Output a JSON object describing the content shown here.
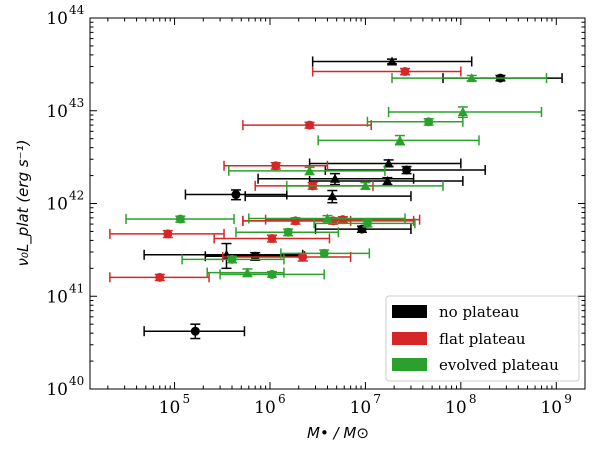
{
  "chart_data": {
    "type": "scatter",
    "title": "",
    "xlabel": "M• / M⊙",
    "ylabel": "ν₀L_plat (erg s⁻¹)",
    "xscale": "log",
    "yscale": "log",
    "xlim": [
      13000.0,
      2000000000.0
    ],
    "ylim": [
      1e+40,
      1e+44
    ],
    "x_tick_labels": [
      {
        "base": "10",
        "exp": "5",
        "value": 100000.0
      },
      {
        "base": "10",
        "exp": "6",
        "value": 1000000.0
      },
      {
        "base": "10",
        "exp": "7",
        "value": 10000000.0
      },
      {
        "base": "10",
        "exp": "8",
        "value": 100000000.0
      },
      {
        "base": "10",
        "exp": "9",
        "value": 1000000000.0
      }
    ],
    "y_tick_labels": [
      {
        "base": "10",
        "exp": "40",
        "value": 1e+40
      },
      {
        "base": "10",
        "exp": "41",
        "value": 1e+41
      },
      {
        "base": "10",
        "exp": "42",
        "value": 1e+42
      },
      {
        "base": "10",
        "exp": "43",
        "value": 1e+43
      },
      {
        "base": "10",
        "exp": "44",
        "value": 1e+44
      }
    ],
    "legend_position": "bottom-right",
    "series": [
      {
        "name": "no plateau",
        "color": "#000000",
        "points": [
          {
            "x": 19000000.0,
            "y": 3.4e+43,
            "xlo": 2800000.0,
            "xhi": 130000000.0,
            "ylo": 3.2e+43,
            "yhi": 3.6e+43,
            "marker": "triangle"
          },
          {
            "x": 260000000.0,
            "y": 2.25e+43,
            "xlo": 65000000.0,
            "xhi": 1150000000.0,
            "ylo": 2.1e+43,
            "yhi": 2.4e+43,
            "marker": "circle"
          },
          {
            "x": 17500000.0,
            "y": 2.7e+42,
            "xlo": 2600000.0,
            "xhi": 100000000.0,
            "ylo": 2.5e+42,
            "yhi": 2.95e+42,
            "marker": "triangle"
          },
          {
            "x": 27000000.0,
            "y": 2.3e+42,
            "xlo": 3800000.0,
            "xhi": 180000000.0,
            "ylo": 2.1e+42,
            "yhi": 2.5e+42,
            "marker": "circle"
          },
          {
            "x": 4800000.0,
            "y": 1.85e+42,
            "xlo": 750000.0,
            "xhi": 32000000.0,
            "ylo": 1.6e+42,
            "yhi": 2.1e+42,
            "marker": "triangle"
          },
          {
            "x": 17000000.0,
            "y": 1.75e+42,
            "xlo": 2600000.0,
            "xhi": 105000000.0,
            "ylo": 1.6e+42,
            "yhi": 1.9e+42,
            "marker": "triangle"
          },
          {
            "x": 440000.0,
            "y": 1.25e+42,
            "xlo": 130000.0,
            "xhi": 1500000.0,
            "ylo": 1.1e+42,
            "yhi": 1.4e+42,
            "marker": "circle"
          },
          {
            "x": 4500000.0,
            "y": 1.2e+42,
            "xlo": 550000.0,
            "xhi": 30000000.0,
            "ylo": 1.02e+42,
            "yhi": 1.38e+42,
            "marker": "triangle"
          },
          {
            "x": 9200000.0,
            "y": 5.3e+41,
            "xlo": 3000000.0,
            "xhi": 30000000.0,
            "ylo": 4.9e+41,
            "yhi": 5.7e+41,
            "marker": "circle"
          },
          {
            "x": 350000.0,
            "y": 2.8e+41,
            "xlo": 48000.0,
            "xhi": 2200000.0,
            "ylo": 2e+41,
            "yhi": 3.7e+41,
            "marker": "triangle"
          },
          {
            "x": 700000.0,
            "y": 2.7e+41,
            "xlo": 210000.0,
            "xhi": 2300000.0,
            "ylo": 2.45e+41,
            "yhi": 2.95e+41,
            "marker": "circle"
          },
          {
            "x": 165000.0,
            "y": 4.2e+40,
            "xlo": 48000.0,
            "xhi": 540000.0,
            "ylo": 3.5e+40,
            "yhi": 5e+40,
            "marker": "circle"
          }
        ]
      },
      {
        "name": "flat plateau",
        "color": "#d62728",
        "points": [
          {
            "x": 26000000.0,
            "y": 2.65e+43,
            "xlo": 2800000.0,
            "xhi": 100000000.0,
            "ylo": 2.45e+43,
            "yhi": 2.85e+43,
            "marker": "circle"
          },
          {
            "x": 2600000.0,
            "y": 7e+42,
            "xlo": 520000.0,
            "xhi": 11500000.0,
            "ylo": 6.5e+42,
            "yhi": 7.5e+42,
            "marker": "circle"
          },
          {
            "x": 1150000.0,
            "y": 2.55e+42,
            "xlo": 330000.0,
            "xhi": 4000000.0,
            "ylo": 2.35e+42,
            "yhi": 2.75e+42,
            "marker": "circle"
          },
          {
            "x": 2800000.0,
            "y": 1.55e+42,
            "xlo": 700000.0,
            "xhi": 12000000.0,
            "ylo": 1.43e+42,
            "yhi": 1.68e+42,
            "marker": "circle"
          },
          {
            "x": 1850000.0,
            "y": 6.5e+41,
            "xlo": 520000.0,
            "xhi": 7000000.0,
            "ylo": 6e+41,
            "yhi": 7e+41,
            "marker": "circle"
          },
          {
            "x": 5800000.0,
            "y": 6.7e+41,
            "xlo": 900000.0,
            "xhi": 37000000.0,
            "ylo": 6.2e+41,
            "yhi": 7.2e+41,
            "marker": "circle"
          },
          {
            "x": 4600000.0,
            "y": 6.5e+41,
            "xlo": 520000.0,
            "xhi": 32000000.0,
            "ylo": 6e+41,
            "yhi": 7e+41,
            "marker": "circle"
          },
          {
            "x": 85000.0,
            "y": 4.7e+41,
            "xlo": 21000.0,
            "xhi": 330000.0,
            "ylo": 4.3e+41,
            "yhi": 5.1e+41,
            "marker": "circle"
          },
          {
            "x": 1050000.0,
            "y": 4.2e+41,
            "xlo": 260000.0,
            "xhi": 4200000.0,
            "ylo": 3.85e+41,
            "yhi": 4.55e+41,
            "marker": "circle"
          },
          {
            "x": 2200000.0,
            "y": 2.65e+41,
            "xlo": 320000.0,
            "xhi": 7000000.0,
            "ylo": 2.4e+41,
            "yhi": 2.9e+41,
            "marker": "circle"
          },
          {
            "x": 70000.0,
            "y": 1.6e+41,
            "xlo": 21000.0,
            "xhi": 230000.0,
            "ylo": 1.48e+41,
            "yhi": 1.72e+41,
            "marker": "circle"
          }
        ]
      },
      {
        "name": "evolved plateau",
        "color": "#2ca02c",
        "points": [
          {
            "x": 130000000.0,
            "y": 2.25e+43,
            "xlo": 19000000.0,
            "xhi": 790000000.0,
            "ylo": 2.1e+43,
            "yhi": 2.4e+43,
            "marker": "triangle"
          },
          {
            "x": 105000000.0,
            "y": 9.7e+42,
            "xlo": 17500000.0,
            "xhi": 700000000.0,
            "ylo": 8.5e+42,
            "yhi": 1.1e+43,
            "marker": "triangle"
          },
          {
            "x": 46000000.0,
            "y": 7.6e+42,
            "xlo": 10500000.0,
            "xhi": 105000000.0,
            "ylo": 7e+42,
            "yhi": 8.2e+42,
            "marker": "circle"
          },
          {
            "x": 23000000.0,
            "y": 4.8e+42,
            "xlo": 3200000.0,
            "xhi": 155000000.0,
            "ylo": 4.3e+42,
            "yhi": 5.4e+42,
            "marker": "triangle"
          },
          {
            "x": 2600000.0,
            "y": 2.25e+42,
            "xlo": 370000.0,
            "xhi": 16000000.0,
            "ylo": 2.05e+42,
            "yhi": 2.45e+42,
            "marker": "triangle"
          },
          {
            "x": 10000000.0,
            "y": 1.55e+42,
            "xlo": 1500000.0,
            "xhi": 65000000.0,
            "ylo": 1.43e+42,
            "yhi": 1.68e+42,
            "marker": "triangle"
          },
          {
            "x": 115000.0,
            "y": 6.8e+41,
            "xlo": 31000.0,
            "xhi": 420000.0,
            "ylo": 6.3e+41,
            "yhi": 7.3e+41,
            "marker": "circle"
          },
          {
            "x": 4000000.0,
            "y": 6.9e+41,
            "xlo": 600000.0,
            "xhi": 26000000.0,
            "ylo": 6.4e+41,
            "yhi": 7.4e+41,
            "marker": "triangle"
          },
          {
            "x": 10500000.0,
            "y": 6.1e+41,
            "xlo": 2900000.0,
            "xhi": 33000000.0,
            "ylo": 5.6e+41,
            "yhi": 6.6e+41,
            "marker": "circle"
          },
          {
            "x": 1550000.0,
            "y": 4.9e+41,
            "xlo": 440000.0,
            "xhi": 5200000.0,
            "ylo": 4.5e+41,
            "yhi": 5.3e+41,
            "marker": "circle"
          },
          {
            "x": 3700000.0,
            "y": 2.9e+41,
            "xlo": 1300000.0,
            "xhi": 11000000.0,
            "ylo": 2.65e+41,
            "yhi": 3.15e+41,
            "marker": "circle"
          },
          {
            "x": 400000.0,
            "y": 2.5e+41,
            "xlo": 120000.0,
            "xhi": 1400000.0,
            "ylo": 2.3e+41,
            "yhi": 2.7e+41,
            "marker": "circle"
          },
          {
            "x": 580000.0,
            "y": 1.8e+41,
            "xlo": 220000.0,
            "xhi": 1400000.0,
            "ylo": 1.63e+41,
            "yhi": 1.97e+41,
            "marker": "triangle"
          },
          {
            "x": 1050000.0,
            "y": 1.72e+41,
            "xlo": 300000.0,
            "xhi": 3700000.0,
            "ylo": 1.6e+41,
            "yhi": 1.84e+41,
            "marker": "circle"
          }
        ]
      }
    ]
  }
}
